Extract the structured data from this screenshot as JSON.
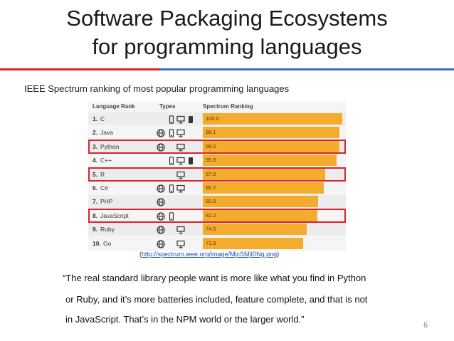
{
  "slide": {
    "title_line1": "Software Packaging Ecosystems",
    "title_line2": "for programming languages",
    "subtitle": "IEEE Spectrum ranking of most popular programming languages",
    "source_open": "(",
    "source_url": "http://spectrum.ieee.org/image/MjcSMjI0Ng.png",
    "source_close": ")",
    "quote_lines": [
      "“The real standard library people want is more like what you find in Python",
      "or Ruby, and it’s more batteries included, feature complete, and that is not",
      "in JavaScript. That’s in the NPM world or the larger world.”"
    ],
    "page_number": "6",
    "colors": {
      "accent_red": "#d9232e",
      "accent_blue": "#3a6fc4",
      "bar": "#f4ac2e"
    }
  },
  "chart_data": {
    "type": "bar",
    "headers": {
      "rank": "Language Rank",
      "types": "Types",
      "value": "Spectrum Ranking"
    },
    "rows": [
      {
        "rank": "1.",
        "language": "C",
        "value": "100.0",
        "types": [
          "mobile",
          "desktop",
          "embedded"
        ],
        "highlight": false
      },
      {
        "rank": "2.",
        "language": "Java",
        "value": "98.1",
        "types": [
          "web",
          "mobile",
          "desktop"
        ],
        "highlight": false
      },
      {
        "rank": "3.",
        "language": "Python",
        "value": "98.0",
        "types": [
          "web",
          "desktop"
        ],
        "highlight": true
      },
      {
        "rank": "4.",
        "language": "C++",
        "value": "95.9",
        "types": [
          "mobile",
          "desktop",
          "embedded"
        ],
        "highlight": false
      },
      {
        "rank": "5.",
        "language": "R",
        "value": "87.9",
        "types": [
          "desktop"
        ],
        "highlight": true
      },
      {
        "rank": "6.",
        "language": "C#",
        "value": "86.7",
        "types": [
          "web",
          "mobile",
          "desktop"
        ],
        "highlight": false
      },
      {
        "rank": "7.",
        "language": "PHP",
        "value": "82.8",
        "types": [
          "web"
        ],
        "highlight": false
      },
      {
        "rank": "8.",
        "language": "JavaScript",
        "value": "82.2",
        "types": [
          "web",
          "mobile"
        ],
        "highlight": true
      },
      {
        "rank": "9.",
        "language": "Ruby",
        "value": "74.5",
        "types": [
          "web",
          "desktop"
        ],
        "highlight": false
      },
      {
        "rank": "10.",
        "language": "Go",
        "value": "71.9",
        "types": [
          "web",
          "desktop"
        ],
        "highlight": false
      }
    ],
    "xlim": [
      0,
      100
    ]
  }
}
